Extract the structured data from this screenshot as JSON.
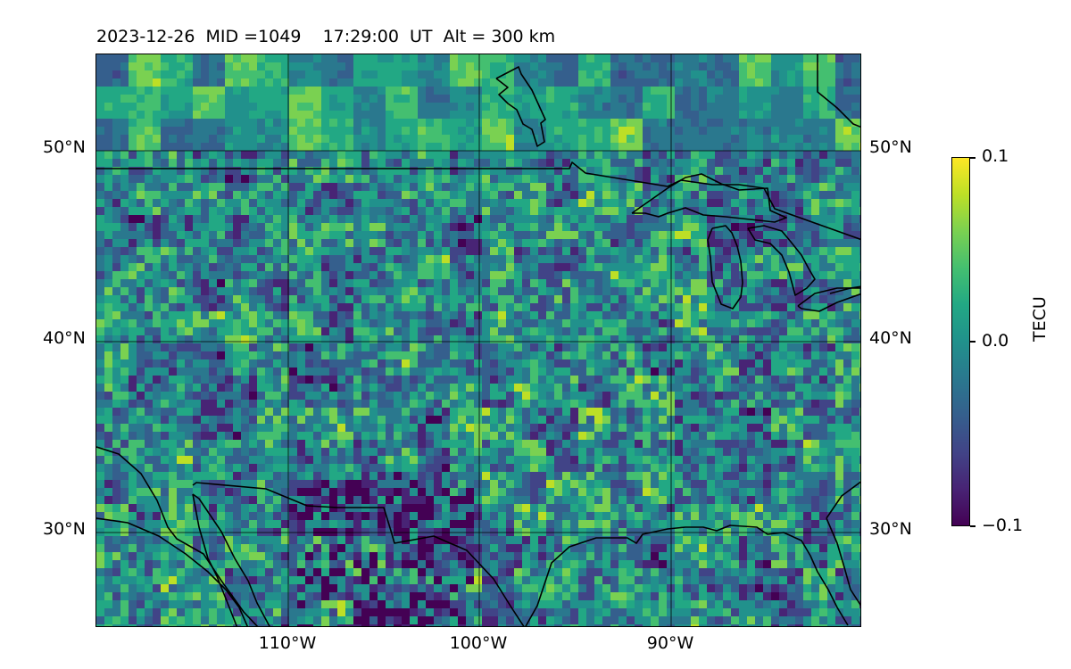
{
  "title": "2023-12-26  MID =1049    17:29:00  UT  Alt = 300 km",
  "map": {
    "lon_range": [
      -120,
      -80
    ],
    "lat_range": [
      25,
      55
    ],
    "gridlines": true,
    "lat_ticks": [
      "50°N",
      "40°N",
      "30°N"
    ],
    "lon_ticks": [
      "110°W",
      "100°W",
      "90°W"
    ]
  },
  "colorbar": {
    "label": "TECU",
    "ticks": [
      "0.1",
      "0.0",
      "−0.1"
    ],
    "range": [
      -0.1,
      0.1
    ],
    "colormap": "viridis"
  },
  "colors": {
    "low": "#440154",
    "mid": "#21918c",
    "high": "#fde725",
    "coastline": "#000000"
  }
}
